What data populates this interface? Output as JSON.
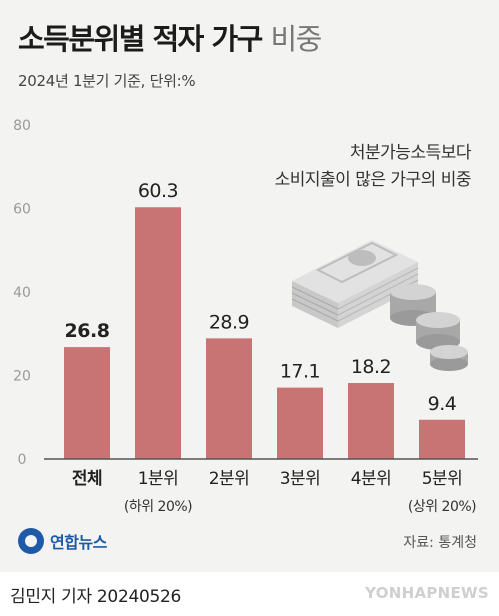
{
  "header": {
    "title": "소득분위별 적자 가구",
    "title_light": "비중",
    "subtitle": "2024년 1분기 기준, 단위:%"
  },
  "note": {
    "line1": "처분가능소득보다",
    "line2": "소비지출이 많은 가구의 비중"
  },
  "chart_data": {
    "type": "bar",
    "categories": [
      "전체",
      "1분위",
      "2분위",
      "3분위",
      "4분위",
      "5분위"
    ],
    "sublabels": [
      "",
      "(하위 20%)",
      "",
      "",
      "",
      "(상위 20%)"
    ],
    "values": [
      26.8,
      60.3,
      28.9,
      17.1,
      18.2,
      9.4
    ],
    "value_labels": [
      "26.8",
      "60.3",
      "28.9",
      "17.1",
      "18.2",
      "9.4"
    ],
    "yticks": [
      "0",
      "20",
      "40",
      "60",
      "80"
    ],
    "ylim": [
      0,
      80
    ],
    "grid": false,
    "bar_color": "#c97474"
  },
  "branding": {
    "logo_text": "연합뉴스",
    "source": "자료: 통계청",
    "byline": "김민지 기자  20240526",
    "watermark": "YONHAPNEWS"
  }
}
